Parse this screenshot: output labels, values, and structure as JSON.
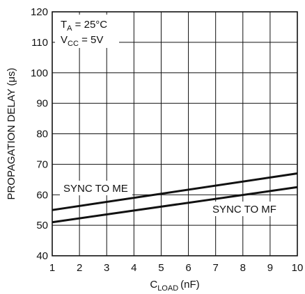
{
  "chart_data": {
    "type": "line",
    "x_label_main": "C",
    "x_label_sub": "LOAD",
    "x_label_unit": "(nF)",
    "y_label": "PROPAGATION DELAY (μs)",
    "x_ticks": [
      "1",
      "2",
      "3",
      "4",
      "5",
      "6",
      "7",
      "8",
      "9",
      "10"
    ],
    "y_ticks": [
      "40",
      "50",
      "60",
      "70",
      "80",
      "90",
      "100",
      "110",
      "120"
    ],
    "xlim": [
      1,
      10
    ],
    "ylim": [
      40,
      120
    ],
    "grid": true,
    "conditions": [
      {
        "main": "T",
        "sub": "A",
        "rest": " = 25°C"
      },
      {
        "main": "V",
        "sub": "CC",
        "rest": " = 5V"
      }
    ],
    "series": [
      {
        "name": "SYNC TO ME",
        "x": [
          1,
          10
        ],
        "y": [
          55,
          67
        ]
      },
      {
        "name": "SYNC TO MF",
        "x": [
          1,
          10
        ],
        "y": [
          51,
          62.5
        ]
      }
    ]
  }
}
